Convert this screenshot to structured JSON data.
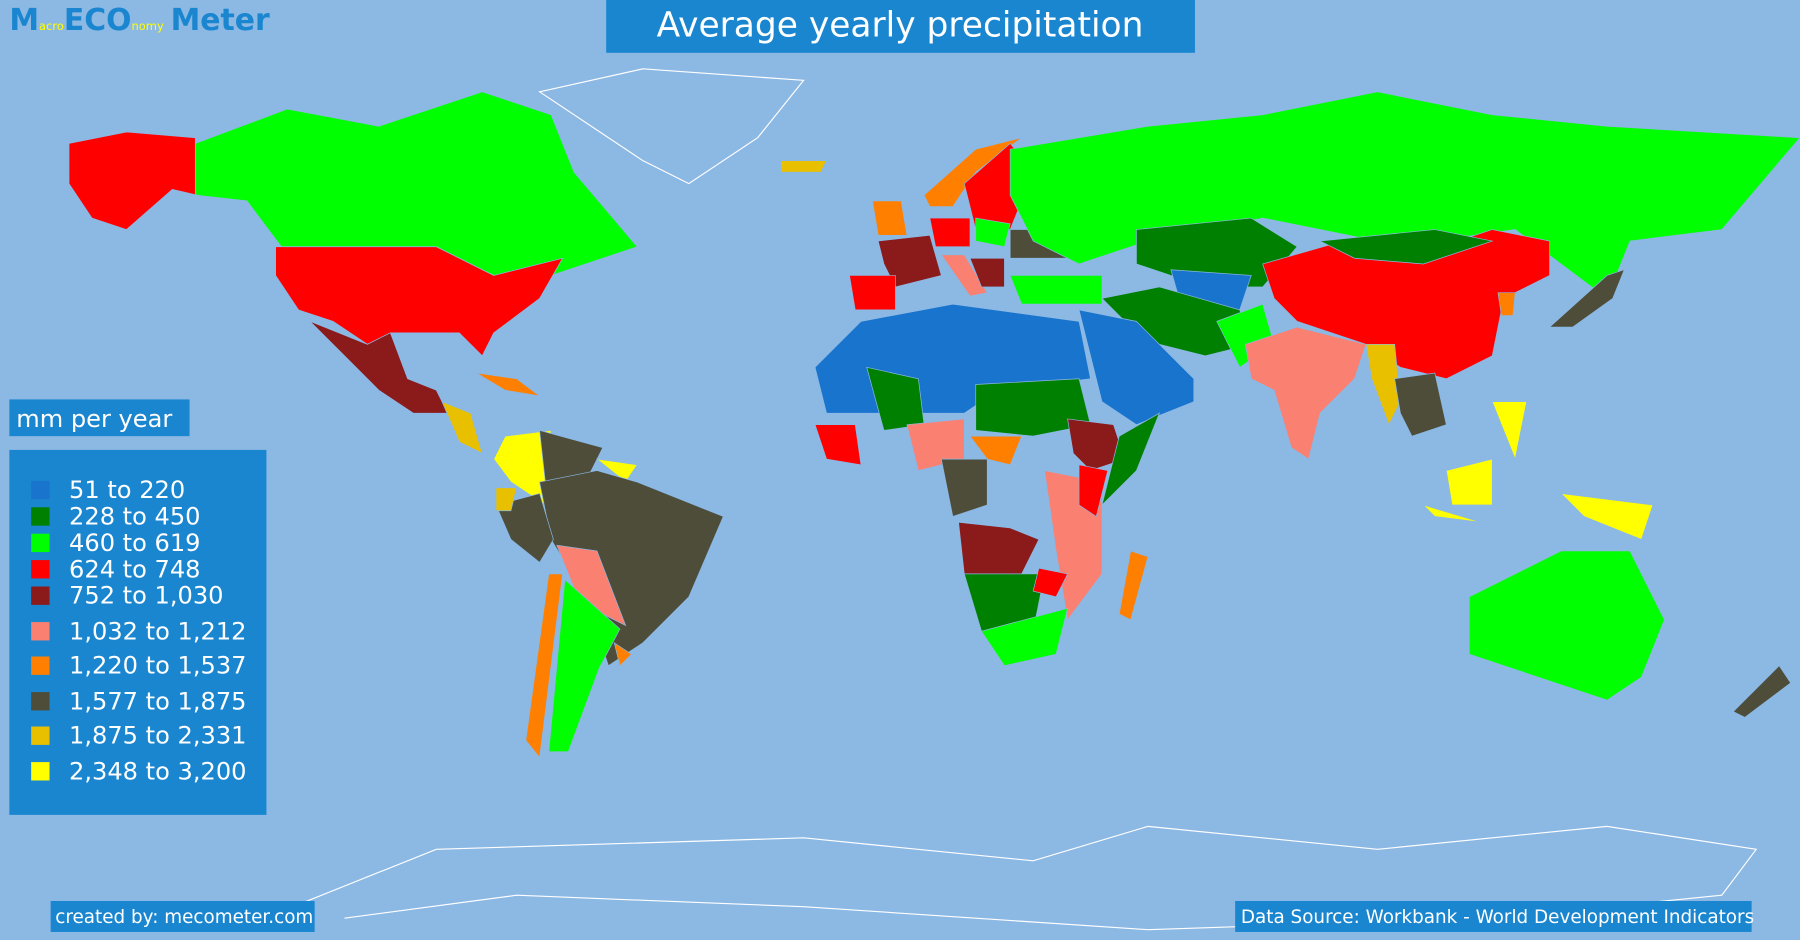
{
  "logo": {
    "parts": [
      "M",
      "acro",
      "ECO",
      "nomy",
      "Meter"
    ]
  },
  "title": "Average yearly precipitation",
  "legend": {
    "title": "mm per year",
    "items": [
      {
        "label": "51 to 220",
        "color": "#1874cd"
      },
      {
        "label": "228 to 450",
        "color": "#008000"
      },
      {
        "label": "460 to 619",
        "color": "#00ff00"
      },
      {
        "label": "624 to 748",
        "color": "#ff0000"
      },
      {
        "label": "752 to 1,030",
        "color": "#8b1a1a"
      },
      {
        "label": "1,032 to 1,212",
        "color": "#fa8072"
      },
      {
        "label": "1,220 to 1,537",
        "color": "#ff7f00"
      },
      {
        "label": "1,577 to 1,875",
        "color": "#4d4d3a"
      },
      {
        "label": "1,875 to 2,331",
        "color": "#e8c000"
      },
      {
        "label": "2,348 to 3,200",
        "color": "#ffff00"
      }
    ]
  },
  "footer": {
    "credit": "created by: mecometer.com",
    "source": "Data Source: Workbank - World Development Indicators"
  }
}
